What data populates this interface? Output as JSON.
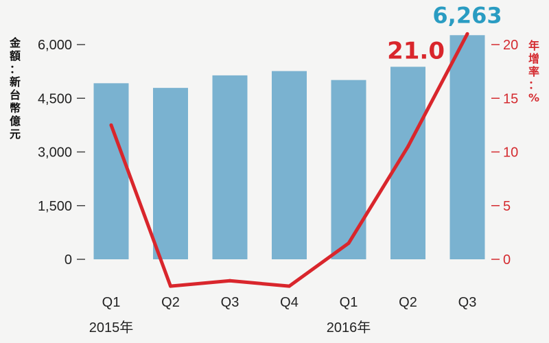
{
  "chart_data": {
    "type": "bar+line",
    "categories": [
      "Q1",
      "Q2",
      "Q3",
      "Q4",
      "Q1",
      "Q2",
      "Q3"
    ],
    "year_labels": [
      {
        "label": "2015年",
        "category_index": 0
      },
      {
        "label": "2016年",
        "category_index": 4
      }
    ],
    "bars": {
      "values": [
        4920,
        4790,
        5140,
        5260,
        5010,
        5380,
        6263
      ],
      "color": "#7ab2d0",
      "axis": "left"
    },
    "line": {
      "values": [
        12.5,
        -2.5,
        -2.0,
        -2.5,
        1.5,
        10.5,
        21.0
      ],
      "color": "#d9262c",
      "axis": "right"
    },
    "left_axis": {
      "label_chars": [
        "金",
        "額",
        "：",
        "新",
        "台",
        "幣",
        "億",
        "元"
      ],
      "ticks": [
        0,
        1500,
        3000,
        4500,
        6000
      ],
      "tick_labels": [
        "0",
        "1,500",
        "3,000",
        "4,500",
        "6,000"
      ],
      "range": [
        0,
        6000
      ]
    },
    "right_axis": {
      "label_chars": [
        "年",
        "增",
        "率",
        "：",
        "%"
      ],
      "ticks": [
        0,
        5,
        10,
        15,
        20
      ],
      "tick_labels": [
        "0",
        "5",
        "10",
        "15",
        "20"
      ],
      "range": [
        0,
        20
      ],
      "color": "#d42a2f"
    },
    "annotations": [
      {
        "text": "6,263",
        "series": "bars",
        "index": 6,
        "color": "#2a9cc2"
      },
      {
        "text": "21.0",
        "series": "line",
        "index": 6,
        "color": "#d9262c"
      }
    ],
    "grid": false,
    "legend": "none"
  }
}
